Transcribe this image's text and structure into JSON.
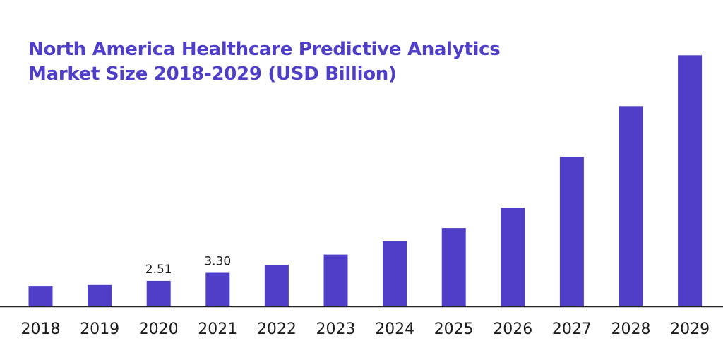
{
  "chart_data": {
    "type": "bar",
    "title": "North America Healthcare Predictive Analytics Market Size 2018-2029 (USD Billion)",
    "title_lines": [
      "North America Healthcare Predictive Analytics",
      "Market Size 2018-2029 (USD Billion)"
    ],
    "categories": [
      "2018",
      "2019",
      "2020",
      "2021",
      "2022",
      "2023",
      "2024",
      "2025",
      "2026",
      "2027",
      "2028",
      "2029"
    ],
    "values": [
      2.01,
      2.1,
      2.51,
      3.3,
      4.1,
      5.1,
      6.4,
      7.7,
      9.7,
      14.7,
      19.7,
      24.7
    ],
    "data_labels": [
      "",
      "",
      "2.51",
      "3.30",
      "",
      "",
      "",
      "",
      "",
      "",
      "",
      ""
    ],
    "xlabel": "",
    "ylabel": "",
    "ylim": [
      0,
      25
    ],
    "grid": false,
    "legend": "none",
    "colors": {
      "bar": "#4f3fc8",
      "title": "#4f3fc8",
      "axis": "#222222",
      "text": "#1c1c1c"
    }
  }
}
